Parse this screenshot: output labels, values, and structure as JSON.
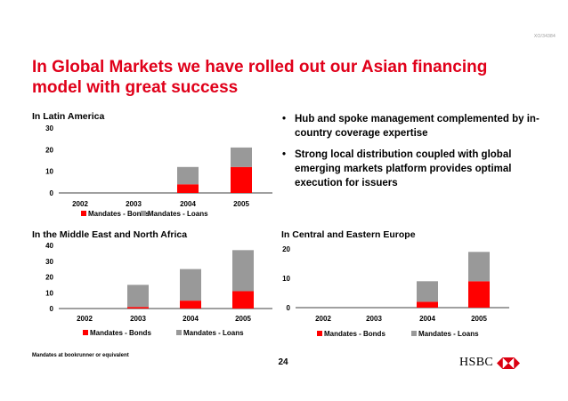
{
  "slide_id": "XO/34384",
  "title": "In Global Markets we have rolled out our Asian financing model with great success",
  "bullets": [
    "Hub and spoke management complemented by in-country coverage expertise",
    "Strong local distribution coupled with global emerging markets platform provides optimal execution for issuers"
  ],
  "footnote": "Mandates at bookrunner or equivalent",
  "page_number": "24",
  "logo_text": "HSBC",
  "colors": {
    "bonds": "#ff0000",
    "loans": "#999999",
    "title": "#e0001a"
  },
  "chart_data": [
    {
      "type": "bar",
      "stacked": true,
      "title": "In Latin America",
      "categories": [
        "2002",
        "2003",
        "2004",
        "2005"
      ],
      "series": [
        {
          "name": "Mandates - Bonds",
          "values": [
            0,
            0,
            4,
            12
          ]
        },
        {
          "name": "Mandates - Loans",
          "values": [
            0,
            0,
            8,
            9
          ]
        }
      ],
      "ylim": [
        0,
        30
      ],
      "yticks": [
        0,
        10,
        20,
        30
      ],
      "legend": "bottom",
      "grid": false
    },
    {
      "type": "bar",
      "stacked": true,
      "title": "In the Middle East and North Africa",
      "categories": [
        "2002",
        "2003",
        "2004",
        "2005"
      ],
      "series": [
        {
          "name": "Mandates - Bonds",
          "values": [
            0,
            1,
            5,
            11
          ]
        },
        {
          "name": "Mandates - Loans",
          "values": [
            0,
            14,
            20,
            26
          ]
        }
      ],
      "ylim": [
        0,
        40
      ],
      "yticks": [
        0,
        10,
        20,
        30,
        40
      ],
      "legend": "bottom",
      "grid": false
    },
    {
      "type": "bar",
      "stacked": true,
      "title": "In Central and Eastern Europe",
      "categories": [
        "2002",
        "2003",
        "2004",
        "2005"
      ],
      "series": [
        {
          "name": "Mandates - Bonds",
          "values": [
            0,
            0,
            2,
            9
          ]
        },
        {
          "name": "Mandates - Loans",
          "values": [
            0,
            0,
            7,
            10
          ]
        }
      ],
      "ylim": [
        0,
        20
      ],
      "yticks": [
        0,
        10,
        20
      ],
      "legend": "bottom",
      "grid": false
    }
  ]
}
